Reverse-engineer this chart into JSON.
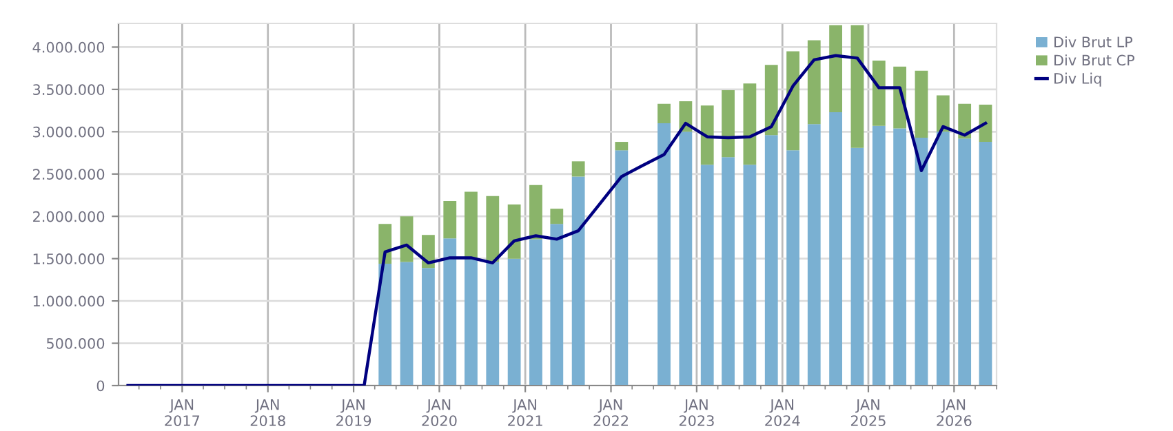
{
  "chart_data": {
    "type": "bar",
    "stacked": true,
    "series": [
      {
        "name": "Div Brut LP",
        "color": "#7ab0d2",
        "x": [
          "2019-05-15",
          "2019-08-15",
          "2019-11-15",
          "2020-02-15",
          "2020-05-15",
          "2020-08-15",
          "2020-11-15",
          "2021-02-15",
          "2021-05-15",
          "2021-08-15",
          "2022-02-15",
          "2022-08-15",
          "2022-11-15",
          "2023-02-15",
          "2023-05-15",
          "2023-08-15",
          "2023-11-15",
          "2024-02-15",
          "2024-05-15",
          "2024-08-15",
          "2024-11-15",
          "2025-02-15",
          "2025-05-15",
          "2025-08-15",
          "2025-11-15",
          "2026-02-15",
          "2026-05-15"
        ],
        "values": [
          1440000,
          1460000,
          1390000,
          1740000,
          1490000,
          1460000,
          1500000,
          1730000,
          1910000,
          2470000,
          2780000,
          3100000,
          3000000,
          2610000,
          2700000,
          2610000,
          2960000,
          2780000,
          3090000,
          3230000,
          2810000,
          3070000,
          3040000,
          2930000,
          3000000,
          2920000,
          2880000
        ]
      },
      {
        "name": "Div Brut CP",
        "color": "#8ab46a",
        "x": [
          "2019-05-15",
          "2019-08-15",
          "2019-11-15",
          "2020-02-15",
          "2020-05-15",
          "2020-08-15",
          "2020-11-15",
          "2021-02-15",
          "2021-05-15",
          "2021-08-15",
          "2022-02-15",
          "2022-08-15",
          "2022-11-15",
          "2023-02-15",
          "2023-05-15",
          "2023-08-15",
          "2023-11-15",
          "2024-02-15",
          "2024-05-15",
          "2024-08-15",
          "2024-11-15",
          "2025-02-15",
          "2025-05-15",
          "2025-08-15",
          "2025-11-15",
          "2026-02-15",
          "2026-05-15"
        ],
        "values": [
          470000,
          540000,
          390000,
          440000,
          800000,
          780000,
          640000,
          640000,
          180000,
          180000,
          100000,
          230000,
          360000,
          700000,
          790000,
          960000,
          830000,
          1170000,
          990000,
          1030000,
          1450000,
          770000,
          730000,
          790000,
          430000,
          410000,
          440000
        ]
      },
      {
        "name": "Div Liq",
        "color": "#000080",
        "type": "line",
        "x": [
          "2016-05-15",
          "2016-08-15",
          "2016-11-15",
          "2017-02-15",
          "2017-05-15",
          "2017-08-15",
          "2017-11-15",
          "2018-02-15",
          "2018-05-15",
          "2018-08-15",
          "2018-11-15",
          "2019-02-15",
          "2019-05-15",
          "2019-08-15",
          "2019-11-15",
          "2020-02-15",
          "2020-05-15",
          "2020-08-15",
          "2020-11-15",
          "2021-02-15",
          "2021-05-15",
          "2021-08-15",
          "2021-11-15",
          "2022-02-15",
          "2022-05-15",
          "2022-08-15",
          "2022-11-15",
          "2023-02-15",
          "2023-05-15",
          "2023-08-15",
          "2023-11-15",
          "2024-02-15",
          "2024-05-15",
          "2024-08-15",
          "2024-11-15",
          "2025-02-15",
          "2025-05-15",
          "2025-08-15",
          "2025-11-15",
          "2026-02-15",
          "2026-05-15"
        ],
        "values": [
          0,
          0,
          0,
          0,
          0,
          0,
          0,
          0,
          0,
          0,
          0,
          0,
          1580000,
          1660000,
          1450000,
          1510000,
          1510000,
          1450000,
          1710000,
          1770000,
          1730000,
          1830000,
          2150000,
          2470000,
          2600000,
          2730000,
          3100000,
          2940000,
          2930000,
          2940000,
          3060000,
          3540000,
          3850000,
          3900000,
          3870000,
          3520000,
          3520000,
          2540000,
          3060000,
          2960000,
          3100000
        ]
      }
    ],
    "xlim": [
      "2016-04-05",
      "2026-07-01"
    ],
    "xticks": [
      {
        "value": "2017-01-01",
        "label": "JAN\n2017"
      },
      {
        "value": "2018-01-01",
        "label": "JAN\n2018"
      },
      {
        "value": "2019-01-01",
        "label": "JAN\n2019"
      },
      {
        "value": "2020-01-01",
        "label": "JAN\n2020"
      },
      {
        "value": "2021-01-01",
        "label": "JAN\n2021"
      },
      {
        "value": "2022-01-01",
        "label": "JAN\n2022"
      },
      {
        "value": "2023-01-01",
        "label": "JAN\n2023"
      },
      {
        "value": "2024-01-01",
        "label": "JAN\n2024"
      },
      {
        "value": "2025-01-01",
        "label": "JAN\n2025"
      },
      {
        "value": "2026-01-01",
        "label": "JAN\n2026"
      }
    ],
    "ylim": [
      0,
      4280000
    ],
    "yticks": [
      0,
      {
        "value": 500000,
        "label": "500.000"
      },
      {
        "value": 1000000,
        "label": "1.000.000"
      },
      {
        "value": 1500000,
        "label": "1.500.000"
      },
      {
        "value": 2000000,
        "label": "2.000.000"
      },
      {
        "value": 2500000,
        "label": "2.500.000"
      },
      {
        "value": 3000000,
        "label": "3.000.000"
      },
      {
        "value": 3500000,
        "label": "3.500.000"
      },
      {
        "value": 4000000,
        "label": "4.000.000"
      }
    ],
    "grid": true,
    "legend": "top right",
    "marker": "none",
    "line_style": "solid"
  }
}
